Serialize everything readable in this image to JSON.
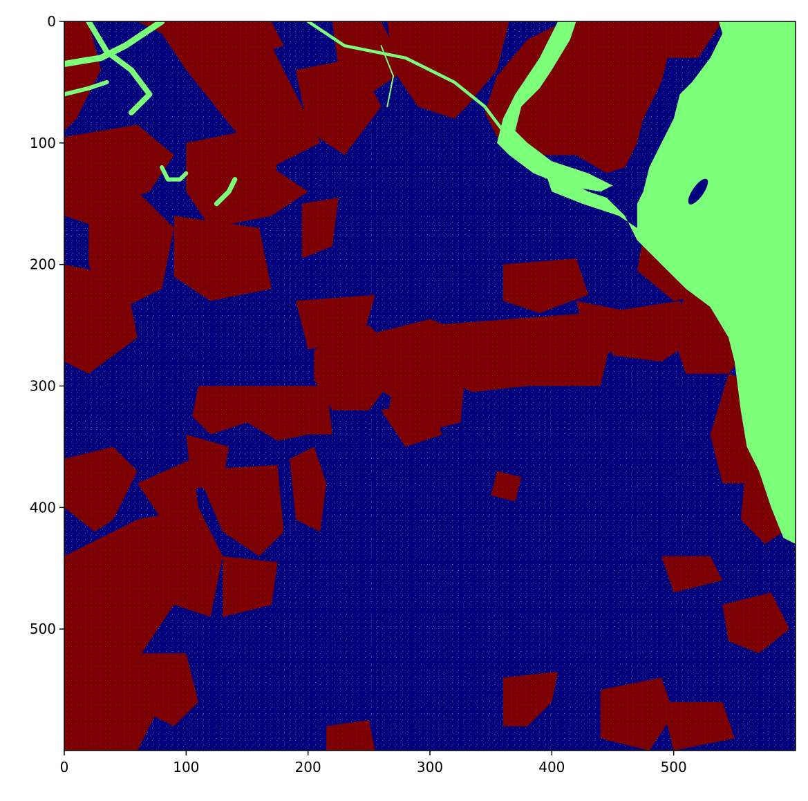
{
  "chart_data": {
    "type": "heatmap",
    "title": "",
    "xlabel": "",
    "ylabel": "",
    "xlim": [
      0,
      600
    ],
    "ylim": [
      600,
      0
    ],
    "x_ticks": [
      0,
      100,
      200,
      300,
      400,
      500
    ],
    "y_ticks": [
      0,
      100,
      200,
      300,
      400,
      500
    ],
    "x_tick_labels": [
      "0",
      "100",
      "200",
      "300",
      "400",
      "500"
    ],
    "y_tick_labels": [
      "0",
      "100",
      "200",
      "300",
      "400",
      "500"
    ],
    "colormap": "jet",
    "class_colors": [
      "#00007f",
      "#7cff79",
      "#7f0000"
    ],
    "grid": false,
    "legend": "none"
  }
}
